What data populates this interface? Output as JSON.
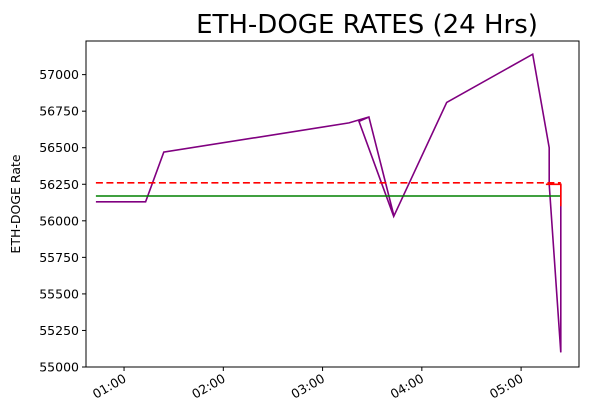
{
  "chart_data": {
    "type": "line",
    "title": "ETH-DOGE RATES (24 Hrs)",
    "xlabel": "",
    "ylabel": "ETH-DOGE Rate",
    "x_unit": "time (HH:MM)",
    "xlim": [
      "00:37",
      "05:35"
    ],
    "ylim": [
      55000,
      57230
    ],
    "x_ticks": [
      "01:00",
      "02:00",
      "03:00",
      "04:00",
      "05:00"
    ],
    "y_ticks": [
      55000,
      55250,
      55500,
      55750,
      56000,
      56250,
      56500,
      56750,
      57000
    ],
    "grid": false,
    "series": [
      {
        "style": "solid",
        "color": "#800080",
        "points": [
          [
            "00:43",
            56130
          ],
          [
            "01:13",
            56130
          ],
          [
            "01:24",
            56470
          ],
          [
            "03:16",
            56670
          ],
          [
            "03:28",
            56710
          ],
          [
            "03:43",
            56040
          ],
          [
            "03:28",
            56710
          ],
          [
            "03:22",
            56680
          ],
          [
            "03:43",
            56030
          ],
          [
            "04:15",
            56810
          ],
          [
            "05:07",
            57140
          ],
          [
            "05:17",
            56500
          ],
          [
            "05:17",
            56250
          ],
          [
            "05:24",
            55100
          ],
          [
            "05:24",
            56250
          ]
        ]
      },
      {
        "style": "dashed",
        "color": "#ff0000",
        "points": [
          [
            "00:43",
            56260
          ],
          [
            "05:24",
            56260
          ]
        ]
      },
      {
        "style": "solid",
        "color": "#008000",
        "points": [
          [
            "00:43",
            56170
          ],
          [
            "05:24",
            56170
          ]
        ]
      },
      {
        "style": "solid",
        "color": "#ff0000",
        "points": [
          [
            "05:15",
            56250
          ],
          [
            "05:24",
            56250
          ],
          [
            "05:24",
            56100
          ]
        ]
      }
    ]
  }
}
